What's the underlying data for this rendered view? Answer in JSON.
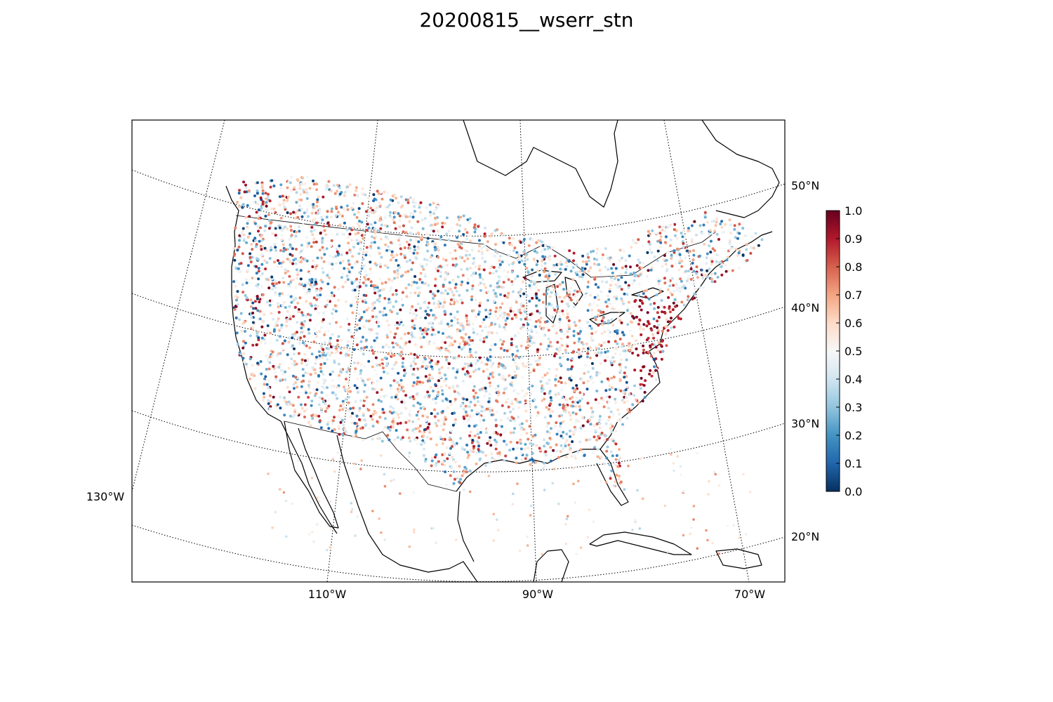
{
  "title": "20200815__wserr_stn",
  "map": {
    "projection": "lambert-conformal",
    "meridian_labels": [
      "130°W",
      "110°W",
      "90°W",
      "70°W"
    ],
    "parallel_labels": [
      "20°N",
      "30°N",
      "40°N",
      "50°N"
    ],
    "marker": "station dots",
    "colormap": "RdBu_r",
    "colormap_stops": [
      "#053061",
      "#2166ac",
      "#4393c3",
      "#92c5de",
      "#d1e5f0",
      "#f7f7f7",
      "#fddbc7",
      "#f4a582",
      "#d6604d",
      "#b2182b",
      "#67001f"
    ]
  },
  "colorbar": {
    "min": 0.0,
    "max": 1.0,
    "ticks": [
      "0.0",
      "0.1",
      "0.2",
      "0.3",
      "0.4",
      "0.5",
      "0.6",
      "0.7",
      "0.8",
      "0.9",
      "1.0"
    ]
  }
}
